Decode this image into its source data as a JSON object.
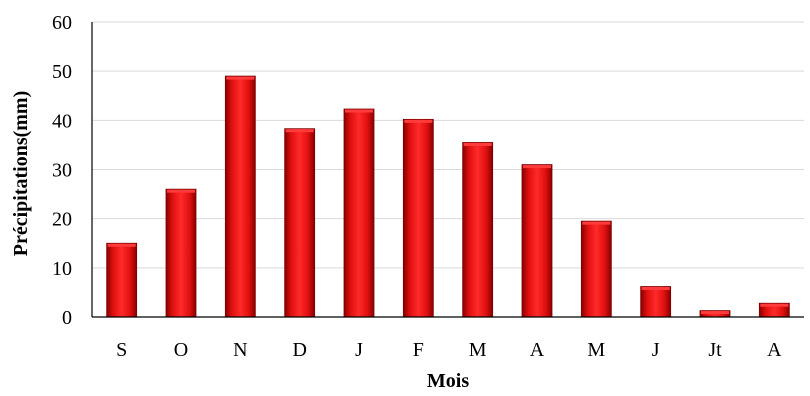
{
  "chart_data": {
    "type": "bar",
    "categories": [
      "S",
      "O",
      "N",
      "D",
      "J",
      "F",
      "M",
      "A",
      "M",
      "J",
      "Jt",
      "A"
    ],
    "values": [
      15,
      26,
      49,
      38.3,
      42.3,
      40.2,
      35.5,
      31,
      19.5,
      6.2,
      1.3,
      2.8
    ],
    "xlabel": "Mois",
    "ylabel": "Précipitations(mm)",
    "ylim": [
      0,
      60
    ],
    "yticks": [
      0,
      10,
      20,
      30,
      40,
      50,
      60
    ],
    "grid": true,
    "legend": "none",
    "colors": {
      "bar_light": "#ff3b3b",
      "bar_mid": "#e00000",
      "bar_dark": "#7a0000",
      "grid": "#d9d9d9"
    }
  }
}
